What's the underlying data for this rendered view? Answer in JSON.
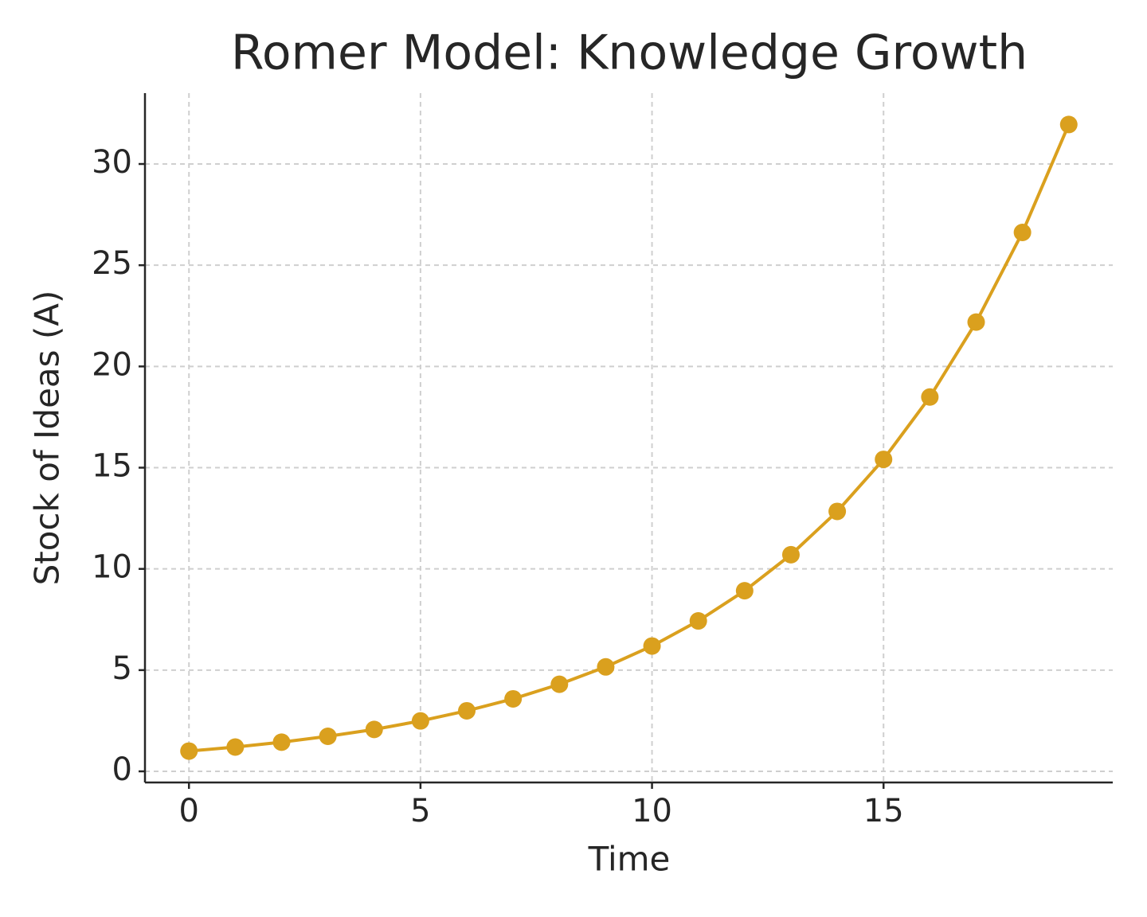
{
  "chart_data": {
    "type": "line",
    "title": "Romer Model: Knowledge Growth",
    "xlabel": "Time",
    "ylabel": "Stock of Ideas (A)",
    "x": [
      0,
      1,
      2,
      3,
      4,
      5,
      6,
      7,
      8,
      9,
      10,
      11,
      12,
      13,
      14,
      15,
      16,
      17,
      18,
      19
    ],
    "series": [
      {
        "color": "#daa01e",
        "values": [
          1,
          1.2,
          1.44,
          1.73,
          2.07,
          2.49,
          2.99,
          3.58,
          4.3,
          5.16,
          6.19,
          7.43,
          8.92,
          10.7,
          12.84,
          15.41,
          18.49,
          22.19,
          26.62,
          31.95
        ]
      }
    ],
    "xlim": [
      -0.95,
      19.95
    ],
    "xticks": [
      0,
      5,
      10,
      15
    ],
    "ylim": [
      -0.55,
      33.5
    ],
    "yticks": [
      0,
      5,
      10,
      15,
      20,
      25,
      30
    ],
    "grid": true
  }
}
